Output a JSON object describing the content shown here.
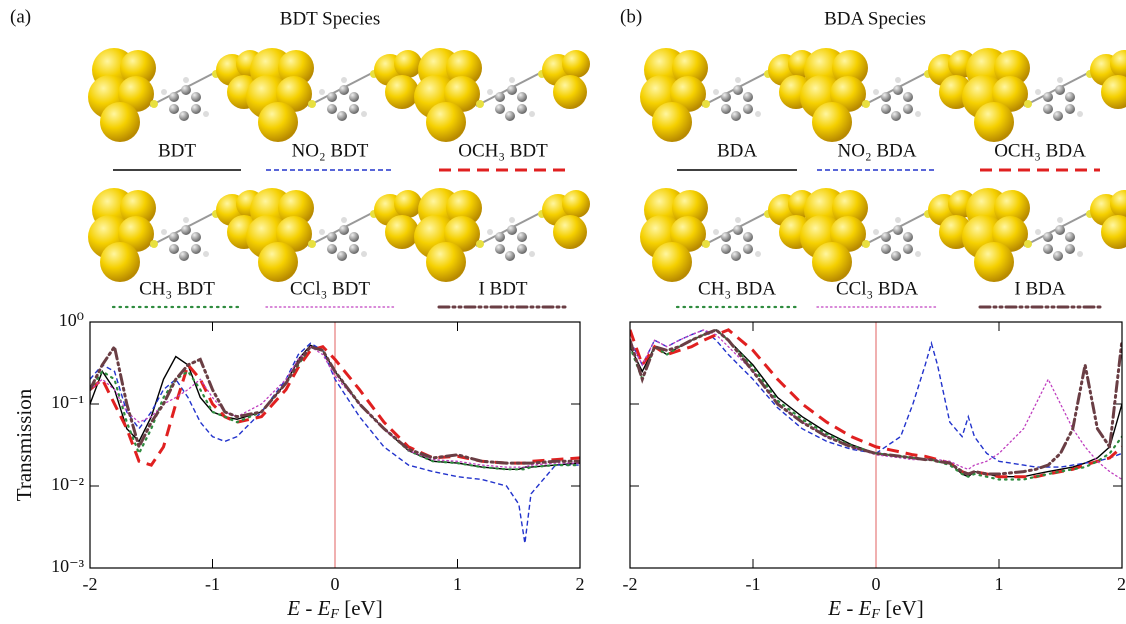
{
  "chart_data": [
    {
      "type": "line",
      "panel": "(a)",
      "title": "BDT Species",
      "ylabel": "Transmission",
      "xlabel": {
        "main": "E - E",
        "sub": "F",
        "unit": " [eV]"
      },
      "xlim": [
        -2,
        2
      ],
      "xticks": [
        -2,
        -1,
        0,
        1,
        2
      ],
      "ylim": [
        0.001,
        1
      ],
      "yscale": "log",
      "ytick_labels": true,
      "yticks": [
        {
          "value": 0.001,
          "label": "10⁻³"
        },
        {
          "value": 0.01,
          "label": "10⁻²"
        },
        {
          "value": 0.1,
          "label": "10⁻¹"
        },
        {
          "value": 1,
          "label": "10⁰"
        }
      ],
      "vline": {
        "x": 0,
        "color": "#e06060"
      },
      "x": [
        -2,
        -1.9,
        -1.8,
        -1.7,
        -1.6,
        -1.5,
        -1.4,
        -1.3,
        -1.2,
        -1.1,
        -1,
        -0.9,
        -0.8,
        -0.6,
        -0.4,
        -0.3,
        -0.2,
        -0.1,
        0,
        0.2,
        0.4,
        0.6,
        0.8,
        1,
        1.2,
        1.4,
        1.5,
        1.55,
        1.6,
        1.8,
        2
      ],
      "series": [
        {
          "name": "BDT",
          "color": "#000000",
          "linestyle": "solid",
          "values": [
            0.1,
            0.25,
            0.15,
            0.05,
            0.035,
            0.07,
            0.2,
            0.38,
            0.3,
            0.12,
            0.08,
            0.07,
            0.065,
            0.08,
            0.18,
            0.35,
            0.52,
            0.45,
            0.25,
            0.1,
            0.05,
            0.027,
            0.02,
            0.019,
            0.017,
            0.016,
            0.016,
            0.017,
            0.017,
            0.018,
            0.019
          ]
        },
        {
          "name": "NO₂ BDT",
          "color": "#2233cc",
          "linestyle": "dashed",
          "values": [
            0.2,
            0.3,
            0.25,
            0.08,
            0.05,
            0.08,
            0.15,
            0.2,
            0.12,
            0.06,
            0.04,
            0.035,
            0.04,
            0.08,
            0.2,
            0.4,
            0.55,
            0.45,
            0.2,
            0.07,
            0.03,
            0.018,
            0.015,
            0.013,
            0.012,
            0.01,
            0.006,
            0.002,
            0.008,
            0.018,
            0.018
          ]
        },
        {
          "name": "OCH₃ BDT",
          "color": "#e02020",
          "linestyle": "longdash",
          "values": [
            0.15,
            0.2,
            0.1,
            0.05,
            0.02,
            0.018,
            0.03,
            0.1,
            0.3,
            0.2,
            0.1,
            0.07,
            0.06,
            0.07,
            0.15,
            0.28,
            0.45,
            0.5,
            0.35,
            0.15,
            0.06,
            0.03,
            0.022,
            0.023,
            0.02,
            0.019,
            0.019,
            0.019,
            0.02,
            0.021,
            0.022
          ]
        },
        {
          "name": "CH₃ BDT",
          "color": "#2e8b3e",
          "linestyle": "dotted",
          "values": [
            0.15,
            0.25,
            0.2,
            0.06,
            0.025,
            0.05,
            0.12,
            0.2,
            0.25,
            0.15,
            0.08,
            0.07,
            0.06,
            0.08,
            0.18,
            0.3,
            0.5,
            0.45,
            0.25,
            0.1,
            0.05,
            0.027,
            0.02,
            0.019,
            0.017,
            0.016,
            0.016,
            0.016,
            0.017,
            0.018,
            0.018
          ]
        },
        {
          "name": "CCl₃ BDT",
          "color": "#c040c0",
          "linestyle": "fine-dotted",
          "values": [
            0.15,
            0.2,
            0.15,
            0.08,
            0.06,
            0.07,
            0.1,
            0.12,
            0.15,
            0.2,
            0.12,
            0.08,
            0.07,
            0.1,
            0.2,
            0.35,
            0.5,
            0.4,
            0.22,
            0.1,
            0.05,
            0.027,
            0.021,
            0.02,
            0.018,
            0.017,
            0.017,
            0.017,
            0.018,
            0.019,
            0.019
          ]
        },
        {
          "name": "I BDT",
          "color": "#6a3e44",
          "linestyle": "dashdotdot",
          "values": [
            0.15,
            0.3,
            0.5,
            0.1,
            0.03,
            0.06,
            0.1,
            0.2,
            0.3,
            0.35,
            0.15,
            0.08,
            0.07,
            0.08,
            0.18,
            0.32,
            0.5,
            0.45,
            0.25,
            0.1,
            0.05,
            0.028,
            0.022,
            0.024,
            0.02,
            0.019,
            0.019,
            0.019,
            0.019,
            0.02,
            0.02
          ]
        }
      ]
    },
    {
      "type": "line",
      "panel": "(b)",
      "title": "BDA Species",
      "xlabel": {
        "main": "E - E",
        "sub": "F",
        "unit": " [eV]"
      },
      "xlim": [
        -2,
        2
      ],
      "xticks": [
        -2,
        -1,
        0,
        1,
        2
      ],
      "ylim": [
        0.001,
        1
      ],
      "yscale": "log",
      "ytick_labels": false,
      "yticks": [
        0.001,
        0.01,
        0.1,
        1
      ],
      "vline": {
        "x": 0,
        "color": "#e06060"
      },
      "x": [
        -2,
        -1.9,
        -1.8,
        -1.7,
        -1.6,
        -1.5,
        -1.4,
        -1.3,
        -1.2,
        -1,
        -0.8,
        -0.6,
        -0.4,
        -0.2,
        0,
        0.2,
        0.3,
        0.4,
        0.45,
        0.5,
        0.6,
        0.7,
        0.75,
        0.8,
        0.9,
        1,
        1.2,
        1.3,
        1.4,
        1.5,
        1.6,
        1.7,
        1.8,
        1.9,
        2
      ],
      "series": [
        {
          "name": "BDA",
          "color": "#000000",
          "linestyle": "solid",
          "values": [
            0.5,
            0.25,
            0.5,
            0.4,
            0.5,
            0.6,
            0.7,
            0.8,
            0.6,
            0.3,
            0.12,
            0.07,
            0.045,
            0.032,
            0.025,
            0.023,
            0.022,
            0.021,
            0.021,
            0.02,
            0.019,
            0.014,
            0.013,
            0.015,
            0.014,
            0.013,
            0.013,
            0.014,
            0.015,
            0.016,
            0.017,
            0.019,
            0.022,
            0.03,
            0.1
          ]
        },
        {
          "name": "NO₂ BDA",
          "color": "#2233cc",
          "linestyle": "dashed",
          "values": [
            0.6,
            0.3,
            0.6,
            0.5,
            0.6,
            0.7,
            0.8,
            0.6,
            0.4,
            0.2,
            0.09,
            0.05,
            0.035,
            0.028,
            0.025,
            0.04,
            0.1,
            0.3,
            0.55,
            0.3,
            0.06,
            0.04,
            0.07,
            0.04,
            0.025,
            0.02,
            0.018,
            0.017,
            0.017,
            0.017,
            0.018,
            0.019,
            0.02,
            0.022,
            0.025
          ]
        },
        {
          "name": "OCH₃ BDA",
          "color": "#e02020",
          "linestyle": "longdash",
          "values": [
            0.8,
            0.3,
            0.5,
            0.4,
            0.45,
            0.5,
            0.6,
            0.7,
            0.8,
            0.45,
            0.2,
            0.1,
            0.06,
            0.04,
            0.03,
            0.026,
            0.024,
            0.023,
            0.022,
            0.021,
            0.019,
            0.015,
            0.014,
            0.015,
            0.014,
            0.013,
            0.013,
            0.013,
            0.014,
            0.015,
            0.016,
            0.018,
            0.02,
            0.022,
            0.03
          ]
        },
        {
          "name": "CH₃ BDA",
          "color": "#2e8b3e",
          "linestyle": "dotted",
          "values": [
            0.5,
            0.2,
            0.5,
            0.4,
            0.5,
            0.6,
            0.7,
            0.8,
            0.6,
            0.28,
            0.11,
            0.065,
            0.043,
            0.031,
            0.025,
            0.023,
            0.022,
            0.021,
            0.021,
            0.02,
            0.018,
            0.014,
            0.013,
            0.014,
            0.013,
            0.012,
            0.012,
            0.013,
            0.014,
            0.015,
            0.016,
            0.017,
            0.02,
            0.025,
            0.04
          ]
        },
        {
          "name": "CCl₃ BDA",
          "color": "#c040c0",
          "linestyle": "fine-dotted",
          "values": [
            0.6,
            0.3,
            0.6,
            0.5,
            0.6,
            0.7,
            0.8,
            0.7,
            0.5,
            0.25,
            0.1,
            0.06,
            0.04,
            0.03,
            0.024,
            0.022,
            0.021,
            0.021,
            0.021,
            0.021,
            0.02,
            0.017,
            0.016,
            0.018,
            0.02,
            0.025,
            0.05,
            0.1,
            0.2,
            0.1,
            0.05,
            0.03,
            0.02,
            0.015,
            0.012
          ]
        },
        {
          "name": "I BDA",
          "color": "#6a3e44",
          "linestyle": "dashdotdot",
          "values": [
            0.6,
            0.2,
            0.5,
            0.45,
            0.5,
            0.6,
            0.7,
            0.8,
            0.6,
            0.25,
            0.1,
            0.06,
            0.04,
            0.03,
            0.025,
            0.023,
            0.022,
            0.021,
            0.021,
            0.02,
            0.019,
            0.015,
            0.014,
            0.015,
            0.014,
            0.014,
            0.015,
            0.016,
            0.018,
            0.025,
            0.05,
            0.3,
            0.05,
            0.03,
            0.6
          ]
        }
      ]
    }
  ]
}
